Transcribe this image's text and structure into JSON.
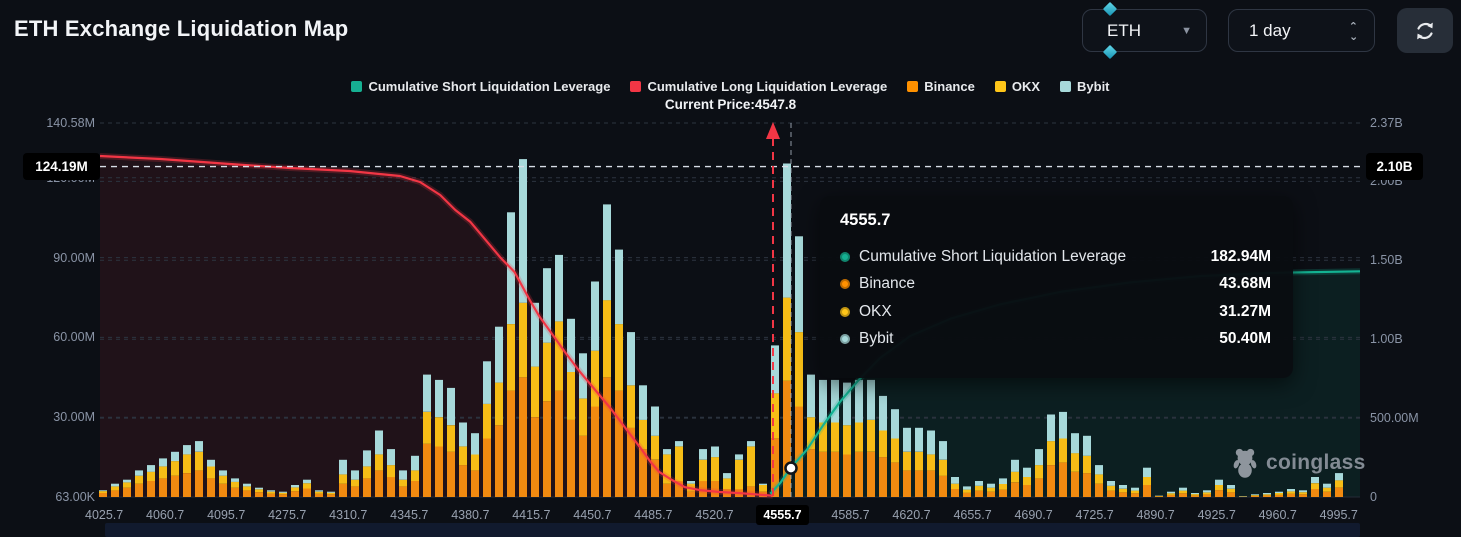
{
  "header": {
    "title": "ETH Exchange Liquidation Map",
    "symbol_select": {
      "value": "ETH"
    },
    "interval_select": {
      "value": "1 day"
    }
  },
  "legend": {
    "items": [
      {
        "label": "Cumulative Short Liquidation Leverage",
        "color": "#16b092"
      },
      {
        "label": "Cumulative Long Liquidation Leverage",
        "color": "#f23645"
      },
      {
        "label": "Binance",
        "color": "#ff9100"
      },
      {
        "label": "OKX",
        "color": "#ffc619"
      },
      {
        "label": "Bybit",
        "color": "#a7d9da"
      }
    ]
  },
  "current_price_label": "Current Price:4547.8",
  "tooltip": {
    "title": "4555.7",
    "rows": [
      {
        "label": "Cumulative Short Liquidation Leverage",
        "value": "182.94M",
        "color": "#16b092"
      },
      {
        "label": "Binance",
        "value": "43.68M",
        "color": "#ff9100"
      },
      {
        "label": "OKX",
        "value": "31.27M",
        "color": "#ffc619"
      },
      {
        "label": "Bybit",
        "value": "50.40M",
        "color": "#a7d9da"
      }
    ]
  },
  "watermark": "coinglass",
  "chart_data": {
    "type": "bar",
    "title": "ETH Exchange Liquidation Map",
    "current_price": 4547.8,
    "highlighted_x": "4555.7",
    "crosshair": {
      "left_label": "124.19M",
      "right_label": "2.10B",
      "left_value_m": 124.19,
      "right_value_b": 2.1
    },
    "left_axis": {
      "unit": "M",
      "max": 140.58,
      "ticks": [
        {
          "v": 140.58,
          "label": "140.58M"
        },
        {
          "v": 120,
          "label": "120.00M"
        },
        {
          "v": 90,
          "label": "90.00M"
        },
        {
          "v": 60,
          "label": "60.00M"
        },
        {
          "v": 30,
          "label": "30.00M"
        },
        {
          "v": 0.063,
          "label": "63.00K"
        }
      ]
    },
    "right_axis": {
      "unit": "B",
      "max": 2.37,
      "ticks": [
        {
          "v": 2.37,
          "label": "2.37B"
        },
        {
          "v": 2.0,
          "label": "2.00B"
        },
        {
          "v": 1.5,
          "label": "1.50B"
        },
        {
          "v": 1.0,
          "label": "1.00B"
        },
        {
          "v": 0.5,
          "label": "500.00M"
        },
        {
          "v": 0,
          "label": "0"
        }
      ]
    },
    "x_labels": [
      "4025.7",
      "4060.7",
      "4095.7",
      "4275.7",
      "4310.7",
      "4345.7",
      "4380.7",
      "4415.7",
      "4450.7",
      "4485.7",
      "4520.7",
      "4555.7",
      "4585.7",
      "4620.7",
      "4655.7",
      "4690.7",
      "4725.7",
      "4890.7",
      "4925.7",
      "4960.7",
      "4995.7"
    ],
    "bars": {
      "series": [
        "Binance",
        "OKX",
        "Bybit"
      ],
      "unit": "M",
      "colors": [
        "#f18a10",
        "#f6bd16",
        "#a7d9da"
      ],
      "values": [
        [
          1.5,
          0.7,
          0.3
        ],
        [
          2.5,
          1.5,
          1
        ],
        [
          3.5,
          2,
          1
        ],
        [
          5,
          3,
          2
        ],
        [
          6,
          3.5,
          2.5
        ],
        [
          7,
          4.5,
          3
        ],
        [
          8,
          5.5,
          3.5
        ],
        [
          9,
          7,
          3.5
        ],
        [
          10,
          7,
          4
        ],
        [
          7,
          4.5,
          2.5
        ],
        [
          5,
          3,
          2
        ],
        [
          3.5,
          2.2,
          1.3
        ],
        [
          2.5,
          1.5,
          1
        ],
        [
          1.8,
          1.1,
          0.6
        ],
        [
          1.2,
          0.8,
          0.5
        ],
        [
          1,
          0.6,
          0.4
        ],
        [
          2.2,
          1.4,
          0.9
        ],
        [
          3.2,
          2,
          1.3
        ],
        [
          1.2,
          0.8,
          0.5
        ],
        [
          1,
          0.6,
          0.4
        ],
        [
          5,
          3.5,
          5.5
        ],
        [
          4,
          2.5,
          3.5
        ],
        [
          7,
          4.5,
          6
        ],
        [
          10,
          6,
          9
        ],
        [
          7.5,
          4.5,
          6
        ],
        [
          4,
          2.5,
          3.5
        ],
        [
          6,
          4,
          5.5
        ],
        [
          20,
          12,
          14
        ],
        [
          19,
          11,
          14
        ],
        [
          17,
          10,
          14
        ],
        [
          12,
          7,
          9
        ],
        [
          10,
          6,
          8
        ],
        [
          22,
          13,
          16
        ],
        [
          27,
          16,
          21
        ],
        [
          40,
          25,
          42
        ],
        [
          45,
          28,
          54
        ],
        [
          30,
          19,
          24
        ],
        [
          36,
          22,
          28
        ],
        [
          40,
          26,
          25
        ],
        [
          29,
          18,
          20
        ],
        [
          23,
          14,
          17
        ],
        [
          34,
          21,
          26
        ],
        [
          45,
          29,
          36
        ],
        [
          40,
          25,
          28
        ],
        [
          26,
          16,
          20
        ],
        [
          18,
          11,
          13
        ],
        [
          14,
          9,
          11
        ],
        [
          5,
          11,
          2
        ],
        [
          6,
          13,
          2
        ],
        [
          2,
          3,
          1
        ],
        [
          6,
          8,
          4
        ],
        [
          6,
          9,
          4
        ],
        [
          3,
          4,
          2
        ],
        [
          3,
          11,
          2
        ],
        [
          4,
          15,
          2
        ],
        [
          2,
          2.5,
          0.5
        ],
        [
          22,
          17,
          18
        ],
        [
          43.68,
          31.27,
          50.4
        ],
        [
          34,
          28,
          36
        ],
        [
          18,
          12,
          16
        ],
        [
          17,
          11,
          16
        ],
        [
          17,
          11,
          16
        ],
        [
          16,
          11,
          16
        ],
        [
          17,
          11,
          16
        ],
        [
          17,
          12,
          15
        ],
        [
          15,
          10,
          13
        ],
        [
          13,
          9,
          11
        ],
        [
          10,
          7,
          9
        ],
        [
          10,
          7,
          9
        ],
        [
          10,
          6,
          9
        ],
        [
          8,
          6,
          7
        ],
        [
          3,
          2,
          2.5
        ],
        [
          1.6,
          1.2,
          1.2
        ],
        [
          2.4,
          1.8,
          1.8
        ],
        [
          2,
          1.5,
          1.5
        ],
        [
          2.8,
          2.1,
          2.1
        ],
        [
          5.5,
          4,
          4.5
        ],
        [
          4.5,
          3,
          3.5
        ],
        [
          7,
          5,
          6
        ],
        [
          12,
          9,
          10
        ],
        [
          13,
          9,
          10
        ],
        [
          9.5,
          7,
          7.5
        ],
        [
          9,
          6.5,
          7.5
        ],
        [
          5,
          3.5,
          3.5
        ],
        [
          2.4,
          1.8,
          1.8
        ],
        [
          1.8,
          1.3,
          1.4
        ],
        [
          1.4,
          1,
          1.1
        ],
        [
          4.5,
          3,
          3.5
        ],
        [
          0.2,
          0.2,
          0.1
        ],
        [
          0.8,
          0.6,
          0.6
        ],
        [
          1.4,
          1,
          1.1
        ],
        [
          0.6,
          0.5,
          0.4
        ],
        [
          1,
          0.7,
          0.8
        ],
        [
          2.6,
          1.9,
          2
        ],
        [
          1.8,
          1.3,
          1.4
        ],
        [
          0.1,
          0.1,
          0.1
        ],
        [
          0.4,
          0.3,
          0.3
        ],
        [
          0.6,
          0.4,
          0.5
        ],
        [
          0.8,
          0.7,
          0.5
        ],
        [
          1.2,
          0.9,
          0.9
        ],
        [
          1,
          0.8,
          0.7
        ],
        [
          3,
          2.2,
          2.3
        ],
        [
          2,
          1.5,
          1.5
        ],
        [
          3.6,
          2.7,
          2.7
        ]
      ]
    },
    "lines": {
      "cumulative_long": {
        "name": "Cumulative Long Liquidation Leverage",
        "unit": "B",
        "color": "#f23645",
        "points": [
          [
            0,
            2.161
          ],
          [
            0.048,
            2.142
          ],
          [
            0.103,
            2.11
          ],
          [
            0.151,
            2.085
          ],
          [
            0.198,
            2.066
          ],
          [
            0.238,
            2.034
          ],
          [
            0.254,
            1.996
          ],
          [
            0.27,
            1.914
          ],
          [
            0.282,
            1.819
          ],
          [
            0.294,
            1.743
          ],
          [
            0.306,
            1.629
          ],
          [
            0.318,
            1.515
          ],
          [
            0.329,
            1.426
          ],
          [
            0.341,
            1.249
          ],
          [
            0.349,
            1.141
          ],
          [
            0.361,
            1.008
          ],
          [
            0.369,
            0.919
          ],
          [
            0.381,
            0.792
          ],
          [
            0.393,
            0.678
          ],
          [
            0.405,
            0.564
          ],
          [
            0.417,
            0.437
          ],
          [
            0.429,
            0.311
          ],
          [
            0.437,
            0.222
          ],
          [
            0.444,
            0.158
          ],
          [
            0.454,
            0.108
          ],
          [
            0.464,
            0.063
          ],
          [
            0.476,
            0.044
          ],
          [
            0.492,
            0.032
          ],
          [
            0.508,
            0.025
          ],
          [
            0.534,
            0.008
          ]
        ]
      },
      "cumulative_short": {
        "name": "Cumulative Short Liquidation Leverage",
        "unit": "B",
        "color": "#14b393",
        "points": [
          [
            0.532,
            0.02
          ],
          [
            0.54,
            0.09
          ],
          [
            0.548,
            0.183
          ],
          [
            0.561,
            0.3
          ],
          [
            0.574,
            0.455
          ],
          [
            0.587,
            0.6
          ],
          [
            0.602,
            0.74
          ],
          [
            0.619,
            0.88
          ],
          [
            0.643,
            1.02
          ],
          [
            0.675,
            1.13
          ],
          [
            0.714,
            1.22
          ],
          [
            0.762,
            1.3
          ],
          [
            0.818,
            1.36
          ],
          [
            0.873,
            1.4
          ],
          [
            0.929,
            1.42
          ],
          [
            1,
            1.43
          ]
        ]
      },
      "marker": {
        "series": "cumulative_short",
        "x_label": "4555.7",
        "value_m": 182.94
      }
    },
    "grid": true,
    "legend_position": "top"
  }
}
